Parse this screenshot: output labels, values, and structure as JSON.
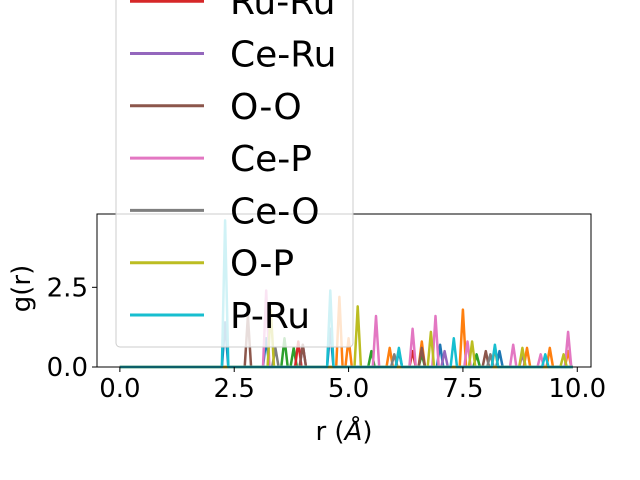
{
  "chart_data": {
    "type": "line",
    "xlabel": "r (",
    "xlabel_symbol": "Å",
    "xlabel_close": ")",
    "ylabel": "g(r)",
    "xlim": [
      -0.5,
      10.3
    ],
    "ylim": [
      0,
      4.8
    ],
    "xticks": [
      "0.0",
      "2.5",
      "5.0",
      "7.5",
      "10.0"
    ],
    "xtick_values": [
      0,
      2.5,
      5.0,
      7.5,
      10.0
    ],
    "yticks": [
      "0.0",
      "2.5"
    ],
    "ytick_values": [
      0,
      2.5
    ],
    "legend_position": "upper-left",
    "grid": false,
    "legend_entries": [
      "Ru-Ru",
      "Ce-Ru",
      "O-O",
      "Ce-P",
      "Ce-O",
      "O-P",
      "P-Ru"
    ],
    "series": [
      {
        "name": "",
        "color": "#1f77b4",
        "peaks": [
          [
            2.3,
            1.4
          ],
          [
            3.2,
            0.9
          ],
          [
            4.6,
            1.2
          ],
          [
            6.1,
            0.5
          ],
          [
            7.0,
            0.7
          ],
          [
            8.3,
            0.5
          ]
        ]
      },
      {
        "name": "",
        "color": "#ff7f0e",
        "peaks": [
          [
            4.8,
            2.2
          ],
          [
            5.0,
            0.9
          ],
          [
            5.9,
            0.6
          ],
          [
            6.6,
            0.8
          ],
          [
            7.5,
            1.8
          ],
          [
            8.2,
            0.6
          ],
          [
            8.9,
            0.6
          ],
          [
            9.4,
            0.6
          ],
          [
            9.8,
            0.5
          ]
        ]
      },
      {
        "name": "",
        "color": "#2ca02c",
        "peaks": [
          [
            3.6,
            0.9
          ],
          [
            3.8,
            0.6
          ],
          [
            5.5,
            0.5
          ],
          [
            6.6,
            0.4
          ],
          [
            7.8,
            0.4
          ]
        ]
      },
      {
        "name": "Ru-Ru",
        "color": "#d62728",
        "peaks": [
          [
            3.9,
            0.8
          ],
          [
            6.4,
            0.5
          ]
        ]
      },
      {
        "name": "Ce-Ru",
        "color": "#9467bd",
        "peaks": [
          [
            4.0,
            0.7
          ],
          [
            7.1,
            0.5
          ],
          [
            8.8,
            0.4
          ]
        ]
      },
      {
        "name": "O-O",
        "color": "#8c564b",
        "peaks": [
          [
            2.8,
            1.6
          ],
          [
            4.0,
            0.7
          ],
          [
            6.6,
            0.6
          ],
          [
            8.0,
            0.5
          ]
        ]
      },
      {
        "name": "Ce-P",
        "color": "#e377c2",
        "peaks": [
          [
            3.2,
            2.4
          ],
          [
            5.6,
            1.6
          ],
          [
            6.4,
            1.2
          ],
          [
            6.9,
            1.6
          ],
          [
            7.6,
            0.8
          ],
          [
            8.6,
            0.7
          ],
          [
            9.2,
            0.4
          ],
          [
            9.8,
            1.1
          ]
        ]
      },
      {
        "name": "Ce-O",
        "color": "#7f7f7f",
        "peaks": [
          [
            3.4,
            0.6
          ],
          [
            6.0,
            0.4
          ],
          [
            8.1,
            0.4
          ]
        ]
      },
      {
        "name": "O-P",
        "color": "#bcbd22",
        "peaks": [
          [
            3.3,
            1.8
          ],
          [
            5.2,
            1.9
          ],
          [
            6.8,
            1.1
          ],
          [
            7.7,
            0.8
          ],
          [
            8.8,
            0.6
          ],
          [
            9.7,
            0.4
          ]
        ]
      },
      {
        "name": "P-Ru",
        "color": "#17becf",
        "peaks": [
          [
            2.3,
            4.6
          ],
          [
            4.6,
            2.4
          ],
          [
            6.1,
            0.6
          ],
          [
            7.3,
            0.9
          ],
          [
            8.2,
            0.7
          ],
          [
            9.3,
            0.4
          ]
        ]
      }
    ]
  }
}
